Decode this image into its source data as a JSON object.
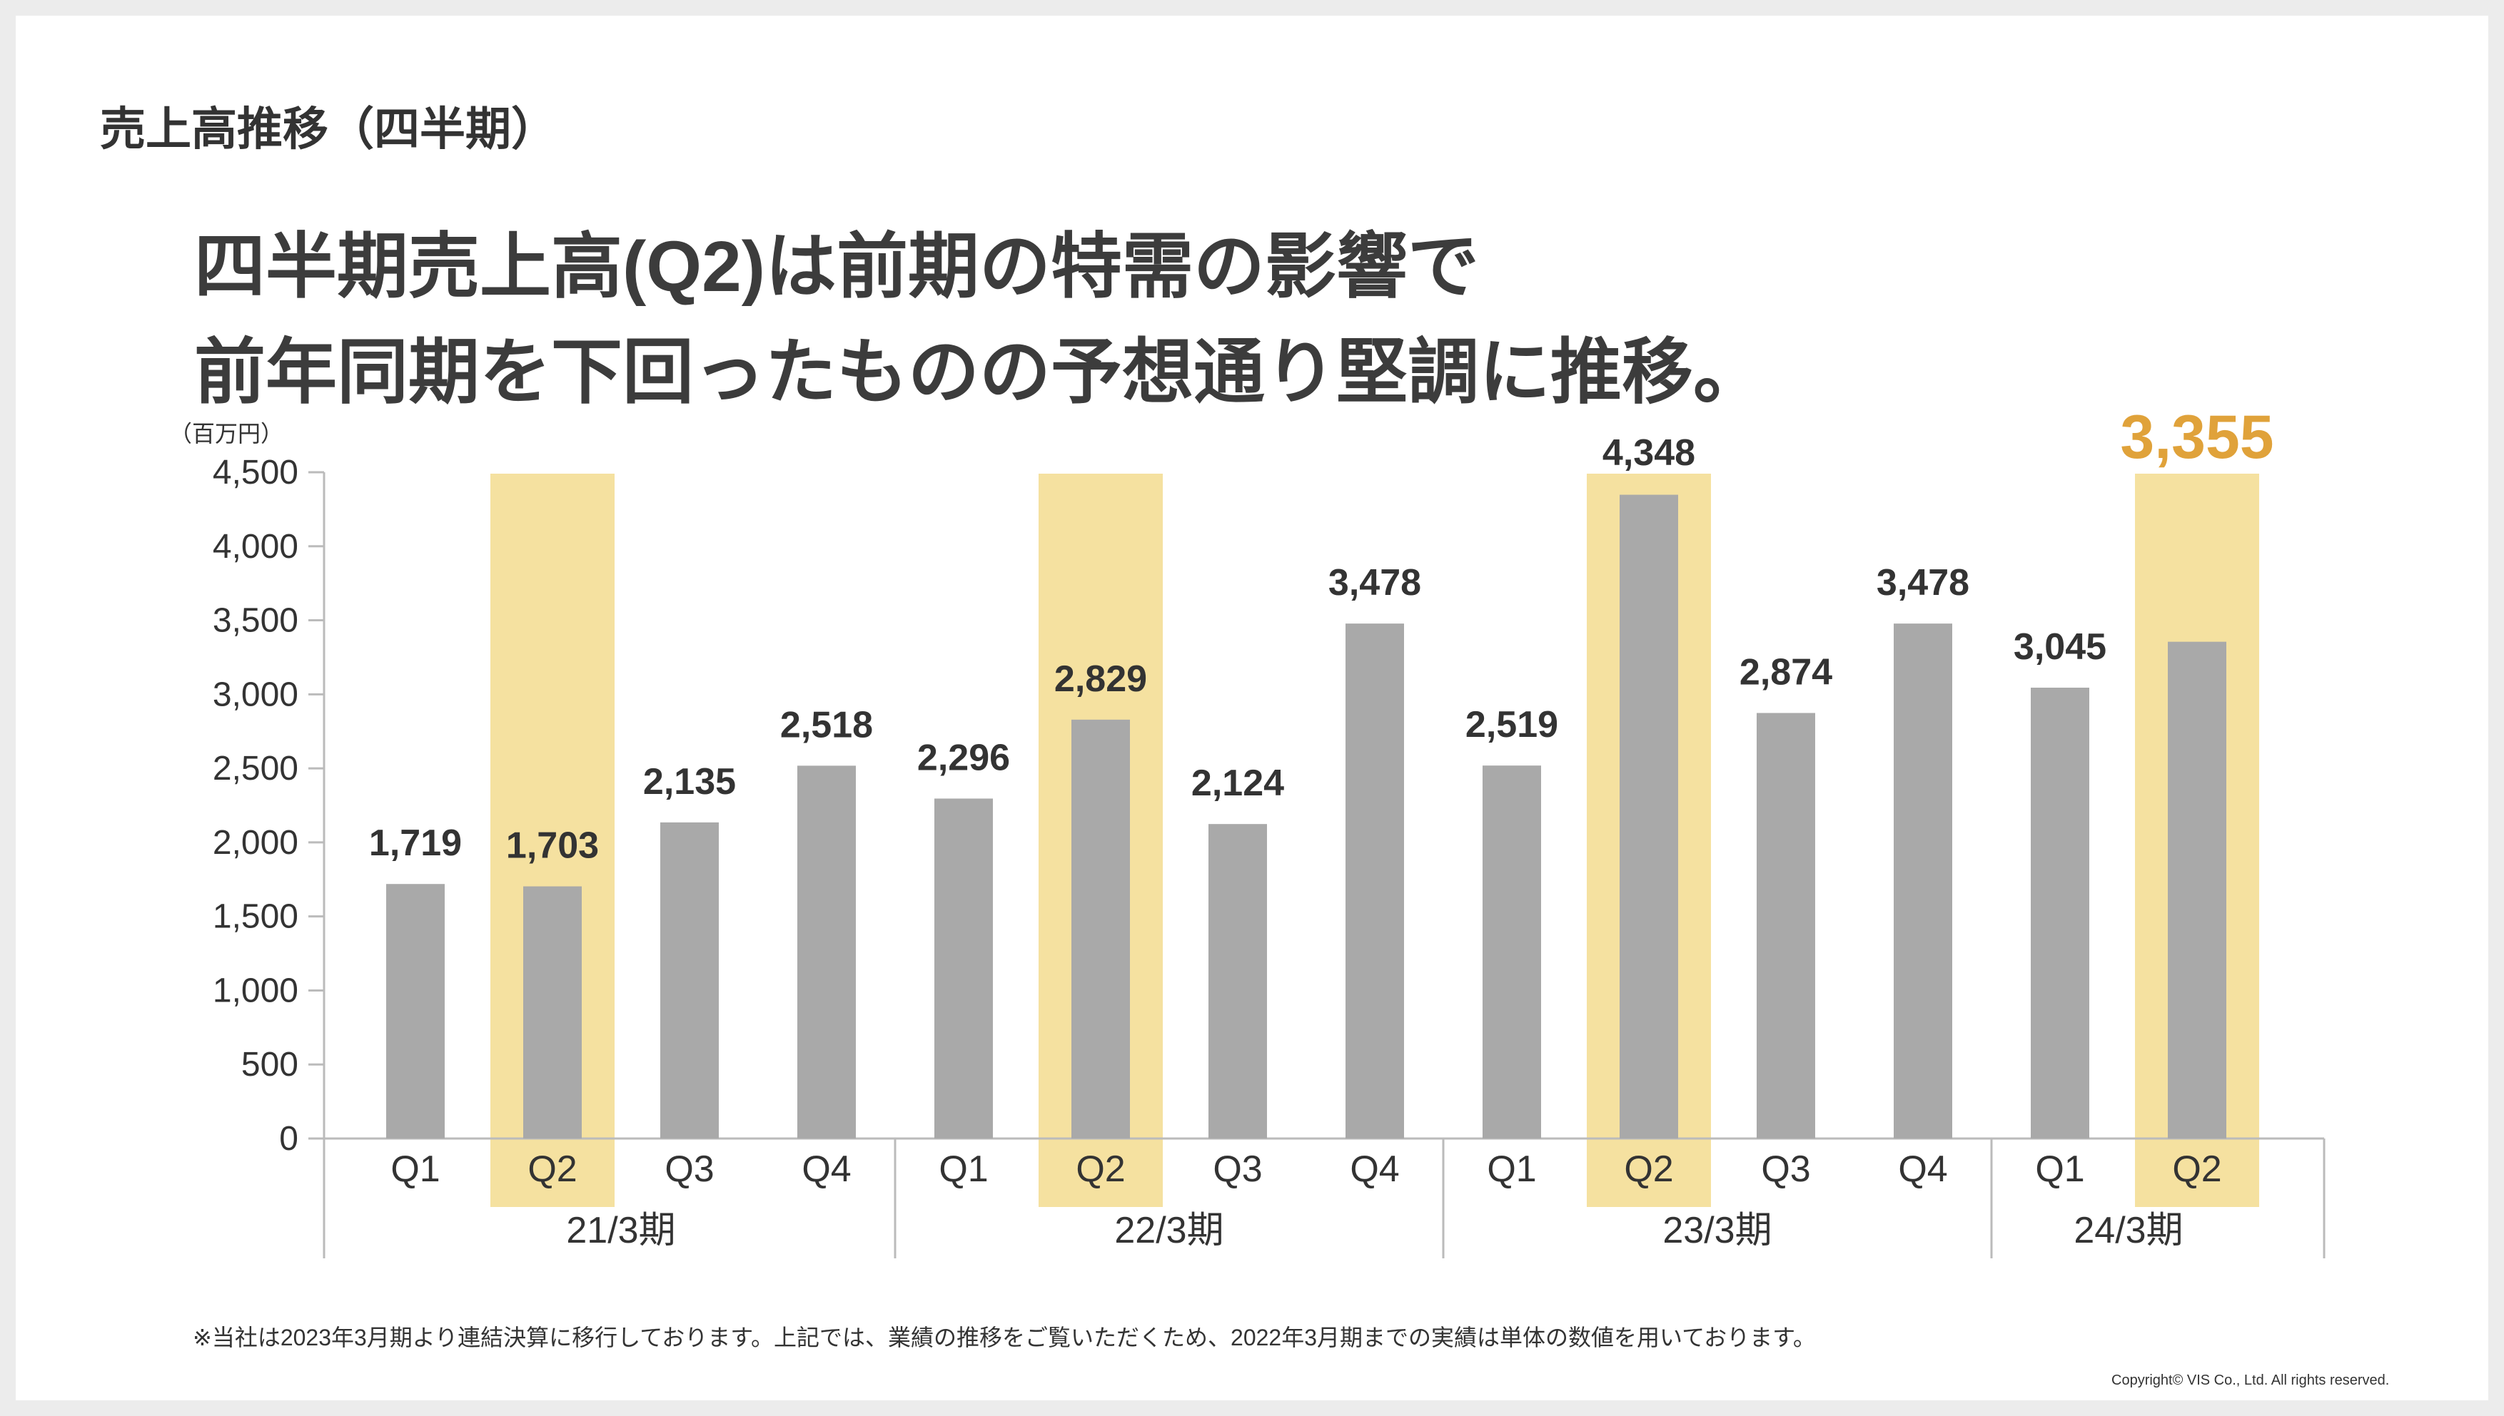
{
  "section_title": "売上高推移（四半期）",
  "headline": {
    "line1": "四半期売上高(Q2)は前期の特需の影響で",
    "line2": "前年同期を下回ったものの予想通り堅調に推移。"
  },
  "footnote": "※当社は2023年3月期より連結決算に移行しております。上記では、業績の推移をご覧いただくため、2022年3月期までの実績は単体の数値を用いております。",
  "copyright": "Copyright© VIS Co., Ltd. All rights reserved.",
  "colors": {
    "bar": "#a9a9a9",
    "highlight": "#f5e1a0",
    "accent": "#e0a23a",
    "axis": "#bbbbbb",
    "text": "#333333"
  },
  "chart_data": {
    "type": "bar",
    "unit_label": "（百万円）",
    "ylim": [
      0,
      4500
    ],
    "yticks": [
      0,
      500,
      1000,
      1500,
      2000,
      2500,
      3000,
      3500,
      4000,
      4500
    ],
    "yticklabels": [
      "0",
      "500",
      "1,000",
      "1,500",
      "2,000",
      "2,500",
      "3,000",
      "3,500",
      "4,000",
      "4,500"
    ],
    "categories": [
      "Q1",
      "Q2",
      "Q3",
      "Q4",
      "Q1",
      "Q2",
      "Q3",
      "Q4",
      "Q1",
      "Q2",
      "Q3",
      "Q4",
      "Q1",
      "Q2"
    ],
    "groups": [
      {
        "label": "21/3期",
        "count": 4
      },
      {
        "label": "22/3期",
        "count": 4
      },
      {
        "label": "23/3期",
        "count": 4
      },
      {
        "label": "24/3期",
        "count": 2
      }
    ],
    "values": [
      1719,
      1703,
      2135,
      2518,
      2296,
      2829,
      2124,
      3478,
      2519,
      4348,
      2874,
      3478,
      3045,
      3355
    ],
    "data_labels": [
      "1,719",
      "1,703",
      "2,135",
      "2,518",
      "2,296",
      "2,829",
      "2,124",
      "3,478",
      "2,519",
      "4,348",
      "2,874",
      "3,478",
      "3,045",
      "3,355"
    ],
    "highlighted": [
      1,
      5,
      9,
      13
    ],
    "emphasized": [
      13
    ],
    "grid": false
  }
}
